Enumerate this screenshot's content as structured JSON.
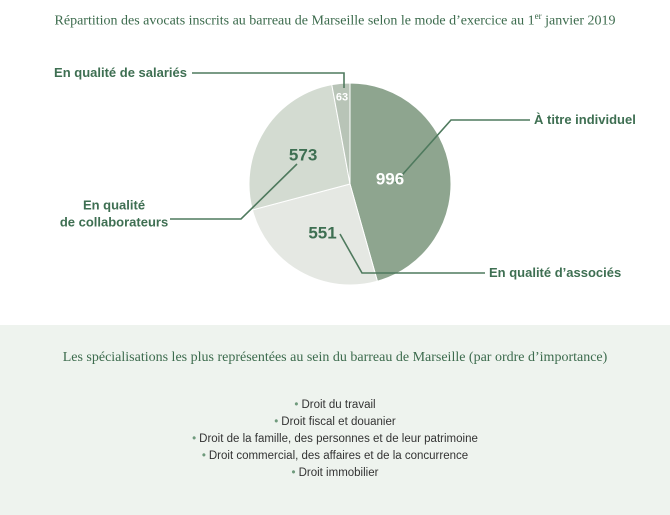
{
  "chart_data": {
    "type": "pie",
    "title_main": "Répartition des avocats inscrits au barreau de Marseille selon le mode d’exercice au 1",
    "title_sup": "er",
    "title_end": " janvier 2019",
    "slices": [
      {
        "label": "À titre individuel",
        "value": 996,
        "color": "#8ea58f"
      },
      {
        "label": "En qualité d’associés",
        "value": 551,
        "color": "#e5e8e3"
      },
      {
        "label_lines": [
          "En qualité",
          "de collaborateurs"
        ],
        "value": 573,
        "color": "#d3dbd1"
      },
      {
        "label": "En qualité de salariés",
        "value": 63,
        "color": "#b8c4b7"
      }
    ]
  },
  "colors": {
    "title": "#3c6b4d",
    "callout": "#3e6f52",
    "leader_line": "#4f7a5e",
    "bottom_background": "#eef3ee"
  },
  "specialisations": {
    "title": "Les spécialisations les plus représentées au sein du barreau de Marseille (par ordre d’importance)",
    "items": [
      "Droit du travail",
      "Droit fiscal et douanier",
      "Droit de la famille, des personnes et de leur patrimoine",
      "Droit commercial, des affaires et de la concurrence",
      "Droit immobilier"
    ]
  }
}
